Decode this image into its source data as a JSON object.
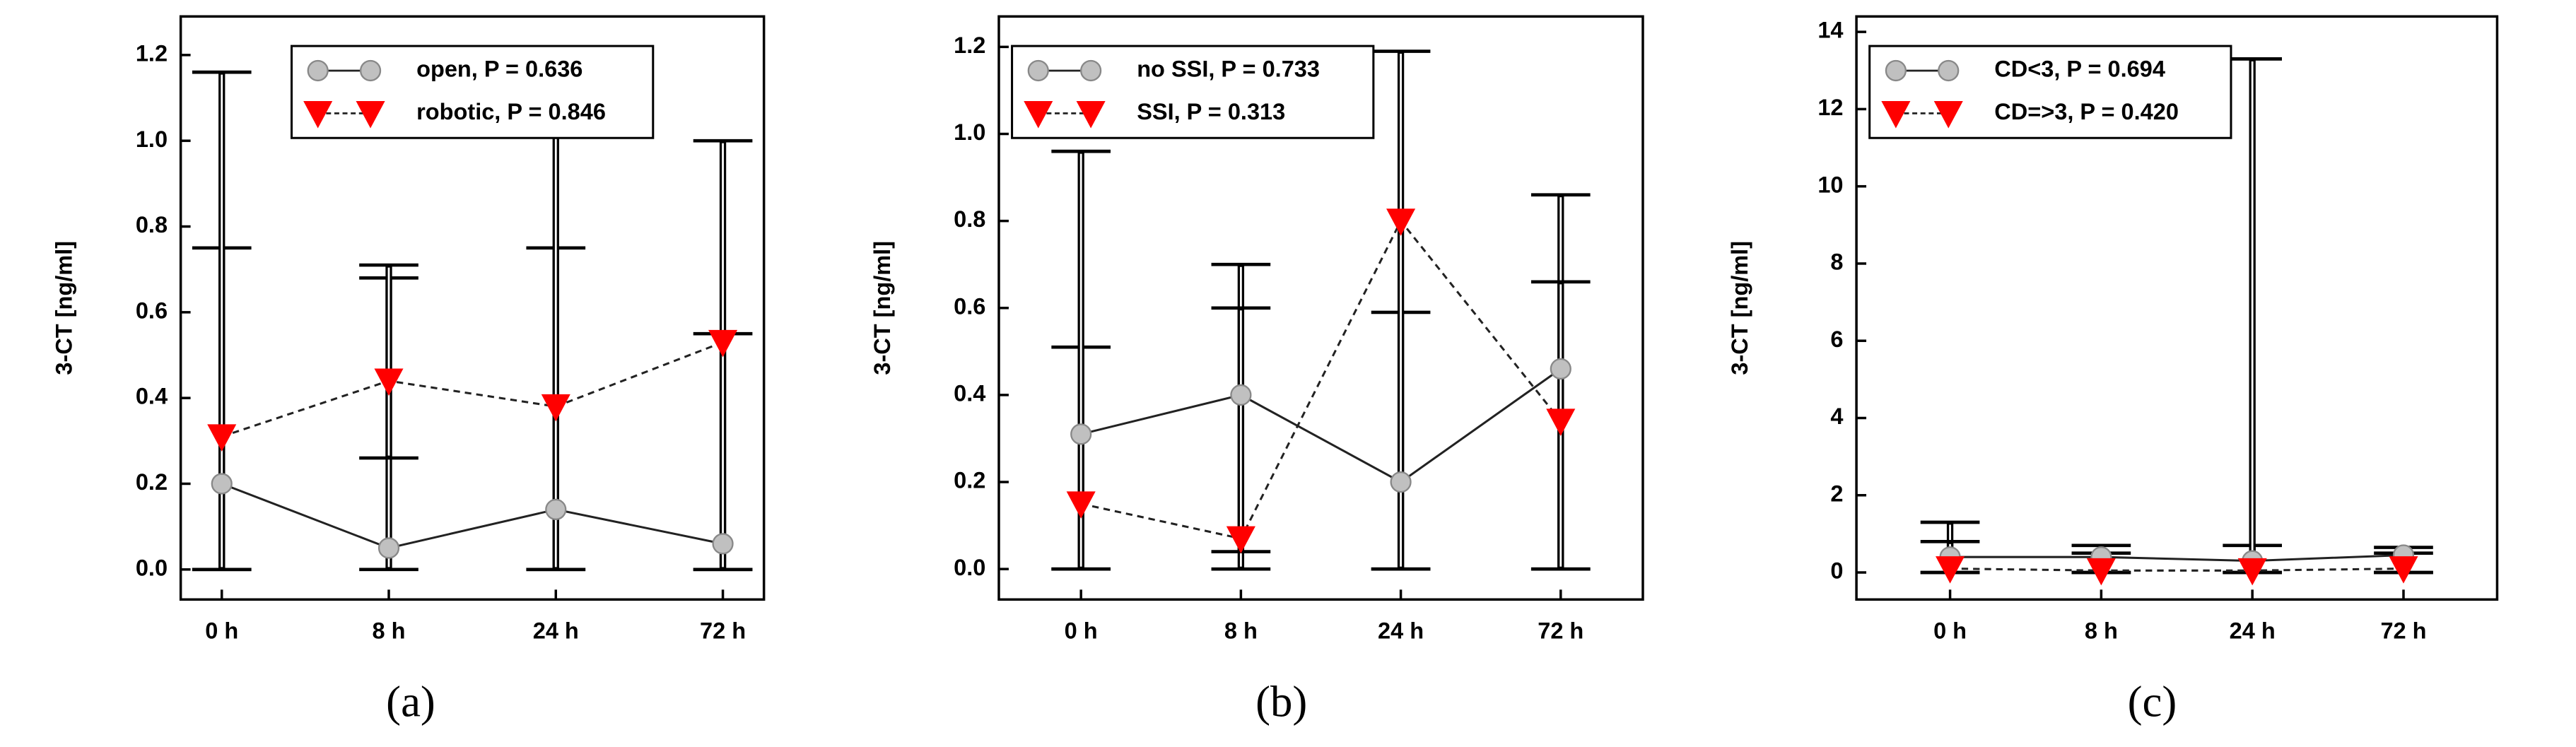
{
  "chart_data": [
    {
      "type": "line",
      "caption": "(a)",
      "ylabel": "3-CT [ng/ml]",
      "categories": [
        "0 h",
        "8 h",
        "24 h",
        "72 h"
      ],
      "ylim": [
        -0.07,
        1.29
      ],
      "yticks": [
        {
          "value": 0,
          "label": "0.0"
        },
        0.2,
        0.4,
        0.6,
        0.8,
        {
          "value": 1,
          "label": "1.0"
        },
        1.2
      ],
      "legend": "upper center",
      "series": [
        {
          "name": "open, P = 0.636",
          "color": "#c0c0c0",
          "marker": "circle",
          "dashed": false,
          "values": [
            0.2,
            0.05,
            0.14,
            0.06
          ],
          "upper": [
            0.75,
            0.68,
            0.75,
            0.55
          ],
          "lower": [
            0,
            0,
            0,
            0
          ]
        },
        {
          "name": "robotic, P = 0.846",
          "color": "#ff0000",
          "marker": "triangle",
          "dashed": true,
          "values": [
            0.31,
            0.44,
            0.38,
            0.53
          ],
          "upper": [
            1.16,
            0.71,
            1.01,
            1.0
          ],
          "lower": [
            0,
            0.26,
            0,
            0
          ]
        }
      ]
    },
    {
      "type": "line",
      "caption": "(b)",
      "ylabel": "3-CT [ng/ml]",
      "categories": [
        "0 h",
        "8 h",
        "24 h",
        "72 h"
      ],
      "ylim": [
        -0.07,
        1.27
      ],
      "yticks": [
        {
          "value": 0,
          "label": "0.0"
        },
        0.2,
        0.4,
        0.6,
        0.8,
        {
          "value": 1,
          "label": "1.0"
        },
        1.2
      ],
      "legend": "upper left",
      "series": [
        {
          "name": "no SSI, P = 0.733",
          "color": "#c0c0c0",
          "marker": "circle",
          "dashed": false,
          "values": [
            0.31,
            0.4,
            0.2,
            0.46
          ],
          "upper": [
            0.51,
            0.7,
            0.59,
            0.86
          ],
          "lower": [
            0,
            0,
            0,
            0
          ]
        },
        {
          "name": "SSI, P = 0.313",
          "color": "#ff0000",
          "marker": "triangle",
          "dashed": true,
          "values": [
            0.15,
            0.07,
            0.8,
            0.34
          ],
          "upper": [
            0.96,
            0.6,
            1.19,
            0.66
          ],
          "lower": [
            0,
            0.04,
            0,
            0
          ]
        }
      ]
    },
    {
      "type": "line",
      "caption": "(c)",
      "ylabel": "3-CT [ng/ml]",
      "categories": [
        "0 h",
        "8 h",
        "24 h",
        "72 h"
      ],
      "ylim": [
        -0.7,
        14.4
      ],
      "yticks": [
        0,
        2,
        4,
        6,
        8,
        10,
        12,
        14
      ],
      "legend": "upper left",
      "series": [
        {
          "name": "CD<3, P = 0.694",
          "color": "#c0c0c0",
          "marker": "circle",
          "dashed": false,
          "values": [
            0.4,
            0.4,
            0.3,
            0.45
          ],
          "upper": [
            1.3,
            0.7,
            0.7,
            0.65
          ],
          "lower": [
            0,
            0,
            0,
            0
          ]
        },
        {
          "name": "CD=>3, P = 0.420",
          "color": "#ff0000",
          "marker": "triangle",
          "dashed": true,
          "values": [
            0.1,
            0.05,
            0.05,
            0.1
          ],
          "upper": [
            0.8,
            0.5,
            13.3,
            0.5
          ],
          "lower": [
            0,
            0,
            0,
            0
          ]
        }
      ]
    }
  ]
}
